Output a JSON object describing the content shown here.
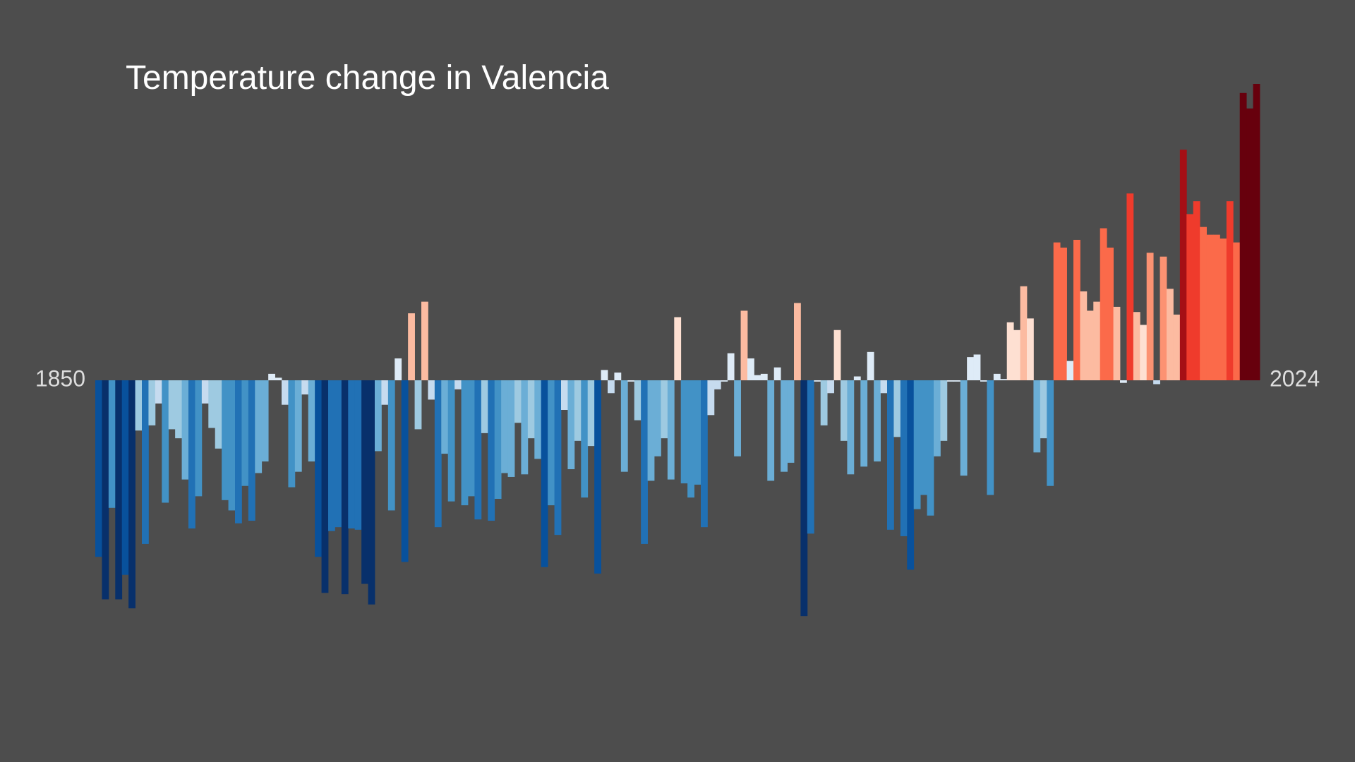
{
  "chart_data": {
    "type": "bar",
    "title": "Temperature change in Valencia",
    "categories": [
      "1850",
      null,
      null,
      null,
      null,
      null,
      null,
      null,
      null,
      null,
      null,
      null,
      null,
      null,
      null,
      null,
      null,
      null,
      null,
      null,
      null,
      null,
      null,
      null,
      null,
      null,
      null,
      null,
      null,
      null,
      null,
      null,
      null,
      null,
      null,
      null,
      null,
      null,
      null,
      null,
      null,
      null,
      null,
      null,
      null,
      null,
      null,
      null,
      null,
      null,
      null,
      null,
      null,
      null,
      null,
      null,
      null,
      null,
      null,
      null,
      null,
      null,
      null,
      null,
      null,
      null,
      null,
      null,
      null,
      null,
      null,
      null,
      null,
      null,
      null,
      null,
      null,
      null,
      null,
      null,
      null,
      null,
      null,
      null,
      null,
      null,
      null,
      null,
      null,
      null,
      null,
      null,
      null,
      null,
      null,
      null,
      null,
      null,
      null,
      null,
      null,
      null,
      null,
      null,
      null,
      null,
      null,
      null,
      null,
      null,
      null,
      null,
      null,
      null,
      null,
      null,
      null,
      null,
      null,
      null,
      null,
      null,
      null,
      null,
      null,
      null,
      null,
      null,
      null,
      null,
      null,
      null,
      null,
      null,
      null,
      null,
      null,
      null,
      null,
      null,
      null,
      null,
      null,
      null,
      null,
      null,
      null,
      null,
      null,
      null,
      null,
      null,
      null,
      null,
      null,
      null,
      null,
      null,
      null,
      null,
      null,
      null,
      null,
      null,
      null,
      null,
      null,
      null,
      null,
      null,
      null,
      null,
      null,
      null,
      "2024"
    ],
    "values": [
      -1.37,
      -1.7,
      -0.99,
      -1.7,
      -1.51,
      -1.77,
      -0.39,
      -1.27,
      -0.35,
      -0.18,
      -0.95,
      -0.38,
      -0.45,
      -0.77,
      -1.15,
      -0.9,
      -0.18,
      -0.37,
      -0.53,
      -0.93,
      -1.01,
      -1.11,
      -0.82,
      -1.09,
      -0.72,
      -0.63,
      0.05,
      0.02,
      -0.19,
      -0.83,
      -0.71,
      -0.11,
      -0.63,
      -1.37,
      -1.65,
      -1.17,
      -1.14,
      -1.66,
      -1.15,
      -1.16,
      -1.58,
      -1.74,
      -0.55,
      -0.19,
      -1.01,
      0.17,
      -1.41,
      0.52,
      -0.38,
      0.61,
      -0.15,
      -1.14,
      -0.57,
      -0.94,
      -0.07,
      -0.97,
      -0.9,
      -1.08,
      -0.41,
      -1.09,
      -0.92,
      -0.72,
      -0.75,
      -0.33,
      -0.73,
      -0.45,
      -0.61,
      -1.45,
      -0.97,
      -1.2,
      -0.23,
      -0.69,
      -0.47,
      -0.91,
      -0.51,
      -1.5,
      0.08,
      -0.1,
      0.06,
      -0.71,
      -0.01,
      -0.31,
      -1.27,
      -0.78,
      -0.59,
      -0.45,
      -0.77,
      0.49,
      -0.8,
      -0.91,
      -0.81,
      -1.14,
      -0.27,
      -0.07,
      -0.01,
      0.21,
      -0.59,
      0.54,
      0.17,
      0.04,
      0.05,
      -0.78,
      0.1,
      -0.71,
      -0.64,
      0.6,
      -1.83,
      -1.19,
      -0.01,
      -0.35,
      -0.1,
      0.39,
      -0.47,
      -0.73,
      0.03,
      -0.67,
      0.22,
      -0.63,
      -0.1,
      -1.16,
      -0.44,
      -1.21,
      -1.47,
      -1.0,
      -0.89,
      -1.05,
      -0.59,
      -0.47,
      -0.01,
      -0.01,
      -0.74,
      0.18,
      0.2,
      -0.01,
      -0.89,
      0.05,
      0.01,
      0.45,
      0.39,
      0.73,
      0.48,
      -0.56,
      -0.45,
      -0.82,
      1.07,
      1.03,
      0.15,
      1.09,
      0.69,
      0.54,
      0.61,
      1.18,
      1.03,
      0.57,
      -0.02,
      1.45,
      0.53,
      0.43,
      0.99,
      -0.03,
      0.96,
      0.71,
      0.51,
      1.79,
      1.29,
      1.39,
      1.19,
      1.13,
      1.13,
      1.1,
      1.39,
      1.07,
      2.23,
      2.11,
      2.3
    ],
    "colors": [
      "#08306b",
      "#08519c",
      "#2171b5",
      "#4292c6",
      "#6baed6",
      "#9ecae1",
      "#c6dbef",
      "#deebf7",
      "#fee0d2",
      "#fcbba1",
      "#fc9272",
      "#fb6a4a",
      "#ef3b2c",
      "#cb181d",
      "#a50f15",
      "#67000d"
    ]
  }
}
